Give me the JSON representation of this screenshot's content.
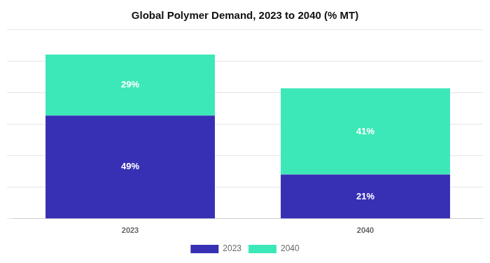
{
  "chart_data": {
    "type": "bar",
    "title": "Global Polymer Demand, 2023 to 2040 (% MT)",
    "categories": [
      "2023",
      "2040"
    ],
    "series": [
      {
        "name": "2023",
        "color": "#3730b5",
        "values": [
          49,
          21
        ],
        "value_labels": [
          "49%",
          "21%"
        ]
      },
      {
        "name": "2040",
        "color": "#3de8b8",
        "values": [
          29,
          41
        ],
        "value_labels": [
          "29%",
          "41%"
        ]
      }
    ],
    "stacked": true,
    "ylim": [
      0,
      90
    ],
    "yticks": [
      0,
      15,
      30,
      45,
      60,
      75,
      90
    ],
    "grid": true,
    "tick_labels": "x",
    "data_labels": true,
    "legend": "bottom"
  }
}
